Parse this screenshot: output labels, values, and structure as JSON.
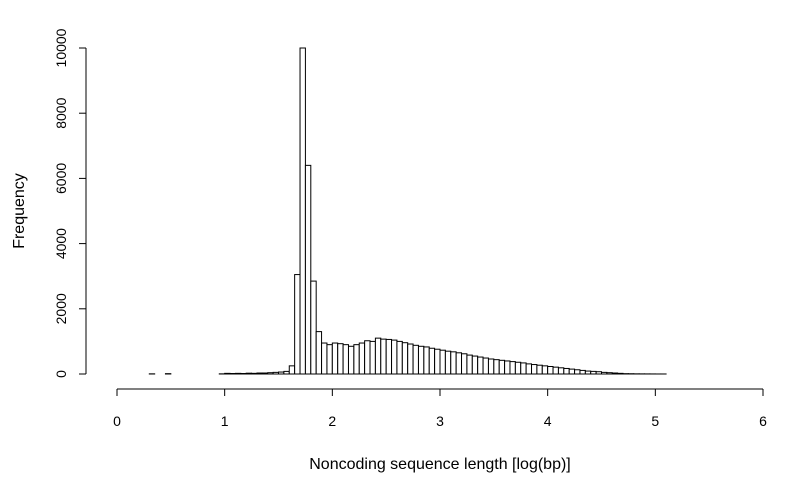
{
  "chart_data": {
    "type": "bar",
    "title": "",
    "xlabel": "Noncoding sequence length [log(bp)]",
    "ylabel": "Frequency",
    "xlim": [
      0,
      6
    ],
    "ylim": [
      0,
      10000
    ],
    "bin_width": 0.05,
    "bin_start": 0,
    "xticks": [
      "0",
      "1",
      "2",
      "3",
      "4",
      "5",
      "6"
    ],
    "yticks": [
      "0",
      "2000",
      "4000",
      "6000",
      "8000",
      "10000"
    ],
    "grid": false,
    "legend": "none",
    "values": [
      0,
      0,
      0,
      0,
      0,
      0,
      5,
      0,
      0,
      10,
      0,
      0,
      0,
      0,
      0,
      0,
      0,
      0,
      0,
      5,
      20,
      15,
      20,
      15,
      25,
      20,
      30,
      30,
      40,
      50,
      60,
      80,
      250,
      3050,
      10000,
      6400,
      2850,
      1300,
      950,
      900,
      950,
      930,
      900,
      850,
      900,
      950,
      1020,
      1000,
      1100,
      1070,
      1060,
      1040,
      1000,
      960,
      920,
      880,
      850,
      830,
      790,
      760,
      730,
      700,
      680,
      650,
      620,
      580,
      550,
      520,
      490,
      460,
      440,
      420,
      400,
      380,
      360,
      340,
      310,
      290,
      270,
      250,
      230,
      210,
      190,
      170,
      150,
      130,
      110,
      90,
      80,
      70,
      50,
      40,
      30,
      20,
      10,
      8,
      5,
      4,
      3,
      2,
      1,
      1,
      0,
      0,
      0,
      0,
      0,
      0,
      0,
      0,
      0,
      0,
      0,
      0,
      0,
      0,
      0,
      0,
      0,
      0
    ]
  }
}
